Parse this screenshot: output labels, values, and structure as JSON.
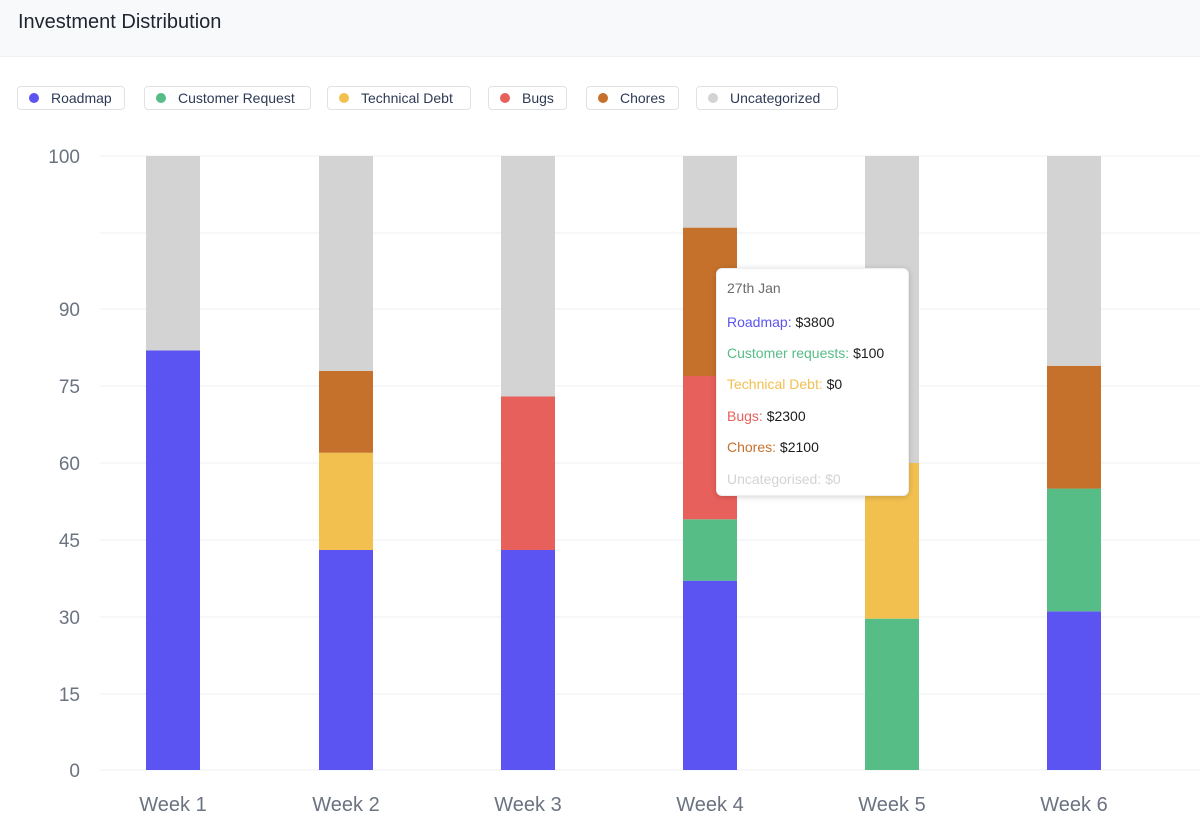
{
  "header": {
    "title": "Investment Distribution"
  },
  "legend": [
    {
      "label": "Roadmap",
      "color": "#5b54f2"
    },
    {
      "label": "Customer Request",
      "color": "#55bd85"
    },
    {
      "label": "Technical Debt",
      "color": "#f2c04f"
    },
    {
      "label": "Bugs",
      "color": "#e8605c"
    },
    {
      "label": "Chores",
      "color": "#c5712c"
    },
    {
      "label": "Uncategorized",
      "color": "#d3d3d3"
    }
  ],
  "tooltip": {
    "date": "27th Jan",
    "rows": [
      {
        "label": "Roadmap:",
        "value": "$3800",
        "color": "#5b54f2"
      },
      {
        "label": "Customer requests:",
        "value": "$100",
        "color": "#55bd85"
      },
      {
        "label": "Technical Debt:",
        "value": "$0",
        "color": "#f2c04f"
      },
      {
        "label": "Bugs:",
        "value": "$2300",
        "color": "#e8605c"
      },
      {
        "label": "Chores:",
        "value": "$2100",
        "color": "#c5712c"
      },
      {
        "label": "Uncategorised:",
        "value": "$0",
        "color": "#d3d3d3"
      }
    ]
  },
  "chart_data": {
    "type": "bar",
    "stacked": true,
    "title": "Investment Distribution",
    "xlabel": "",
    "ylabel": "",
    "grid": true,
    "legend_position": "top-left",
    "y_ticks": [
      "0",
      "15",
      "30",
      "45",
      "60",
      "75",
      "90",
      "100"
    ],
    "categories": [
      "Week 1",
      "Week 2",
      "Week 3",
      "Week 4",
      "Week 5",
      "Week 6"
    ],
    "series": [
      {
        "name": "Roadmap",
        "color": "#5b54f2",
        "values": [
          82,
          43,
          43,
          37,
          0,
          31
        ]
      },
      {
        "name": "Customer Request",
        "color": "#55bd85",
        "values": [
          0,
          0,
          0,
          12,
          35,
          24
        ]
      },
      {
        "name": "Technical Debt",
        "color": "#f2c04f",
        "values": [
          0,
          19,
          0,
          0,
          36,
          0
        ]
      },
      {
        "name": "Bugs",
        "color": "#e8605c",
        "values": [
          0,
          0,
          30,
          28,
          0,
          0
        ]
      },
      {
        "name": "Chores",
        "color": "#c5712c",
        "values": [
          0,
          16,
          0,
          29,
          0,
          24
        ]
      },
      {
        "name": "Uncategorized",
        "color": "#d3d3d3",
        "values": [
          38,
          42,
          47,
          14,
          71,
          41
        ]
      }
    ]
  }
}
